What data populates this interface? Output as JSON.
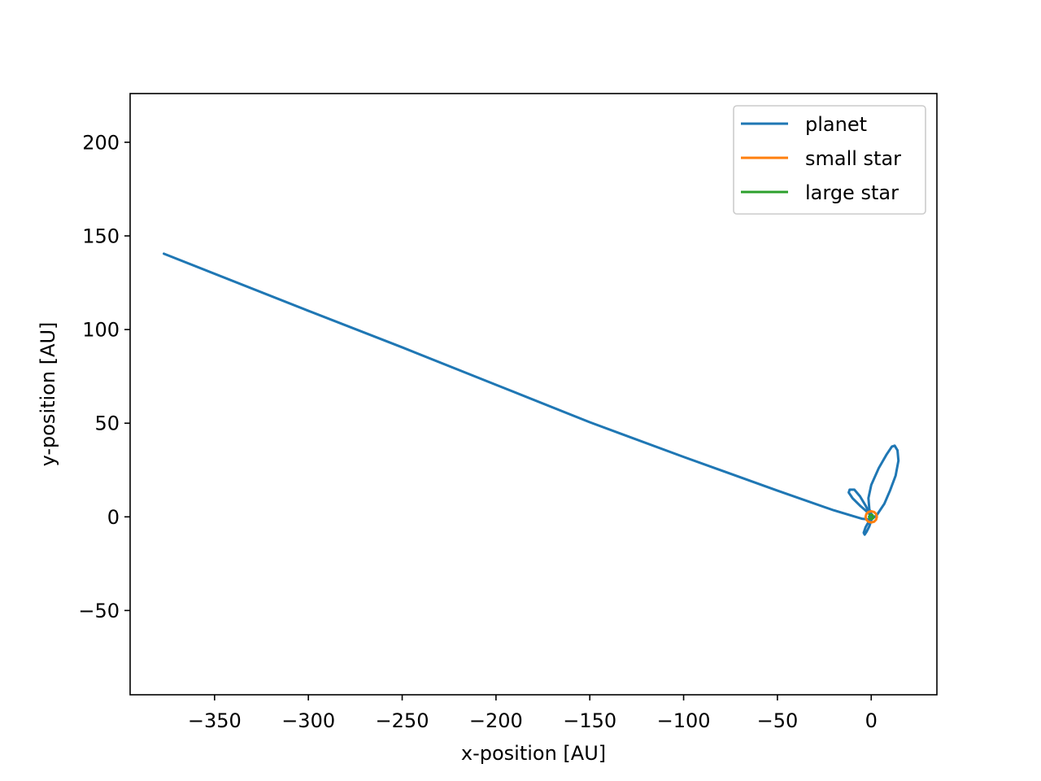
{
  "chart_data": {
    "type": "line",
    "title": "",
    "xlabel": "x-position [AU]",
    "ylabel": "y-position [AU]",
    "xlim": [
      -395,
      35
    ],
    "ylim": [
      -95,
      226
    ],
    "xticks": [
      -350,
      -300,
      -250,
      -200,
      -150,
      -100,
      -50,
      0
    ],
    "yticks": [
      -50,
      0,
      50,
      100,
      150,
      200
    ],
    "xtick_labels": [
      "−350",
      "−300",
      "−250",
      "−200",
      "−150",
      "−100",
      "−50",
      "0"
    ],
    "ytick_labels": [
      "−50",
      "0",
      "50",
      "100",
      "150",
      "200"
    ],
    "grid": false,
    "legend_position": "upper right",
    "series": [
      {
        "name": "planet",
        "color": "#1f77b4",
        "points": [
          [
            -377,
            140.5
          ],
          [
            -300,
            110
          ],
          [
            -250,
            90.5
          ],
          [
            -200,
            70.5
          ],
          [
            -150,
            50.5
          ],
          [
            -100,
            32
          ],
          [
            -50,
            14
          ],
          [
            -20,
            3.5
          ],
          [
            -5,
            -1
          ],
          [
            0,
            -1.5
          ],
          [
            3,
            1
          ],
          [
            7,
            7
          ],
          [
            10,
            14
          ],
          [
            13,
            22
          ],
          [
            14.5,
            30
          ],
          [
            14,
            35.5
          ],
          [
            12.5,
            38
          ],
          [
            11,
            37.5
          ],
          [
            8,
            33
          ],
          [
            4,
            26
          ],
          [
            0,
            17
          ],
          [
            -1.5,
            10
          ],
          [
            -1,
            4
          ],
          [
            0.5,
            0.5
          ],
          [
            1,
            -0.5
          ],
          [
            -1,
            2
          ],
          [
            -3,
            6
          ],
          [
            -6,
            11
          ],
          [
            -9,
            14.5
          ],
          [
            -11.5,
            14.5
          ],
          [
            -12,
            13
          ],
          [
            -10,
            10
          ],
          [
            -6,
            6
          ],
          [
            -2,
            2.5
          ],
          [
            0.5,
            0
          ],
          [
            0,
            -2
          ],
          [
            -1,
            -5
          ],
          [
            -2.5,
            -8
          ],
          [
            -3.5,
            -9.5
          ],
          [
            -4,
            -8.5
          ],
          [
            -3,
            -5.5
          ],
          [
            -1,
            -2
          ],
          [
            0.5,
            0
          ],
          [
            0.5,
            0
          ]
        ]
      },
      {
        "name": "small star",
        "color": "#ff7f0e",
        "points": [
          [
            3.0,
            0.0
          ],
          [
            2.6,
            1.5
          ],
          [
            1.5,
            2.6
          ],
          [
            0.0,
            3.0
          ],
          [
            -1.5,
            2.6
          ],
          [
            -2.6,
            1.5
          ],
          [
            -3.0,
            0.0
          ],
          [
            -2.6,
            -1.5
          ],
          [
            -1.5,
            -2.6
          ],
          [
            0.0,
            -3.0
          ],
          [
            1.5,
            -2.6
          ],
          [
            2.6,
            -1.5
          ],
          [
            3.0,
            0.0
          ]
        ]
      },
      {
        "name": "large star",
        "color": "#2ca02c",
        "points": [
          [
            1.2,
            0.0
          ],
          [
            0.6,
            1.0
          ],
          [
            -0.6,
            1.0
          ],
          [
            -1.2,
            0.0
          ],
          [
            -0.6,
            -1.0
          ],
          [
            0.6,
            -1.0
          ],
          [
            1.2,
            0.0
          ]
        ]
      }
    ]
  }
}
